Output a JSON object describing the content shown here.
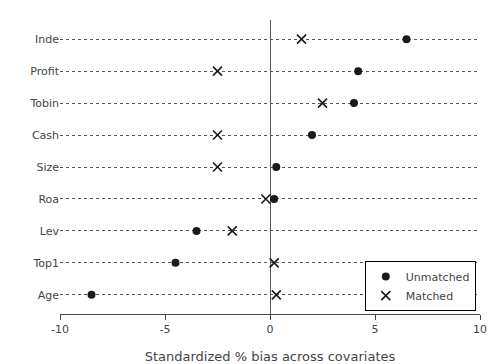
{
  "chart_data": {
    "type": "scatter",
    "xlabel": "Standardized % bias across covariates",
    "categories": [
      "Age",
      "Top1",
      "Lev",
      "Roa",
      "Size",
      "Cash",
      "Tobin",
      "Profit",
      "Inde"
    ],
    "series": [
      {
        "name": "Unmatched",
        "values": [
          -8.5,
          -4.5,
          -3.5,
          0.2,
          0.3,
          2.0,
          4.0,
          4.2,
          6.5
        ],
        "marker": "circle",
        "color": "#1a1a1a"
      },
      {
        "name": "Matched",
        "values": [
          0.3,
          0.2,
          -1.8,
          -0.2,
          -2.5,
          -2.5,
          2.5,
          -2.5,
          1.5
        ],
        "marker": "x",
        "color": "#1a1a1a"
      }
    ],
    "xlim": [
      -10,
      10
    ],
    "xticks": [
      -10,
      -5,
      0,
      5,
      10
    ],
    "grid": "y",
    "legend": "lower right"
  }
}
